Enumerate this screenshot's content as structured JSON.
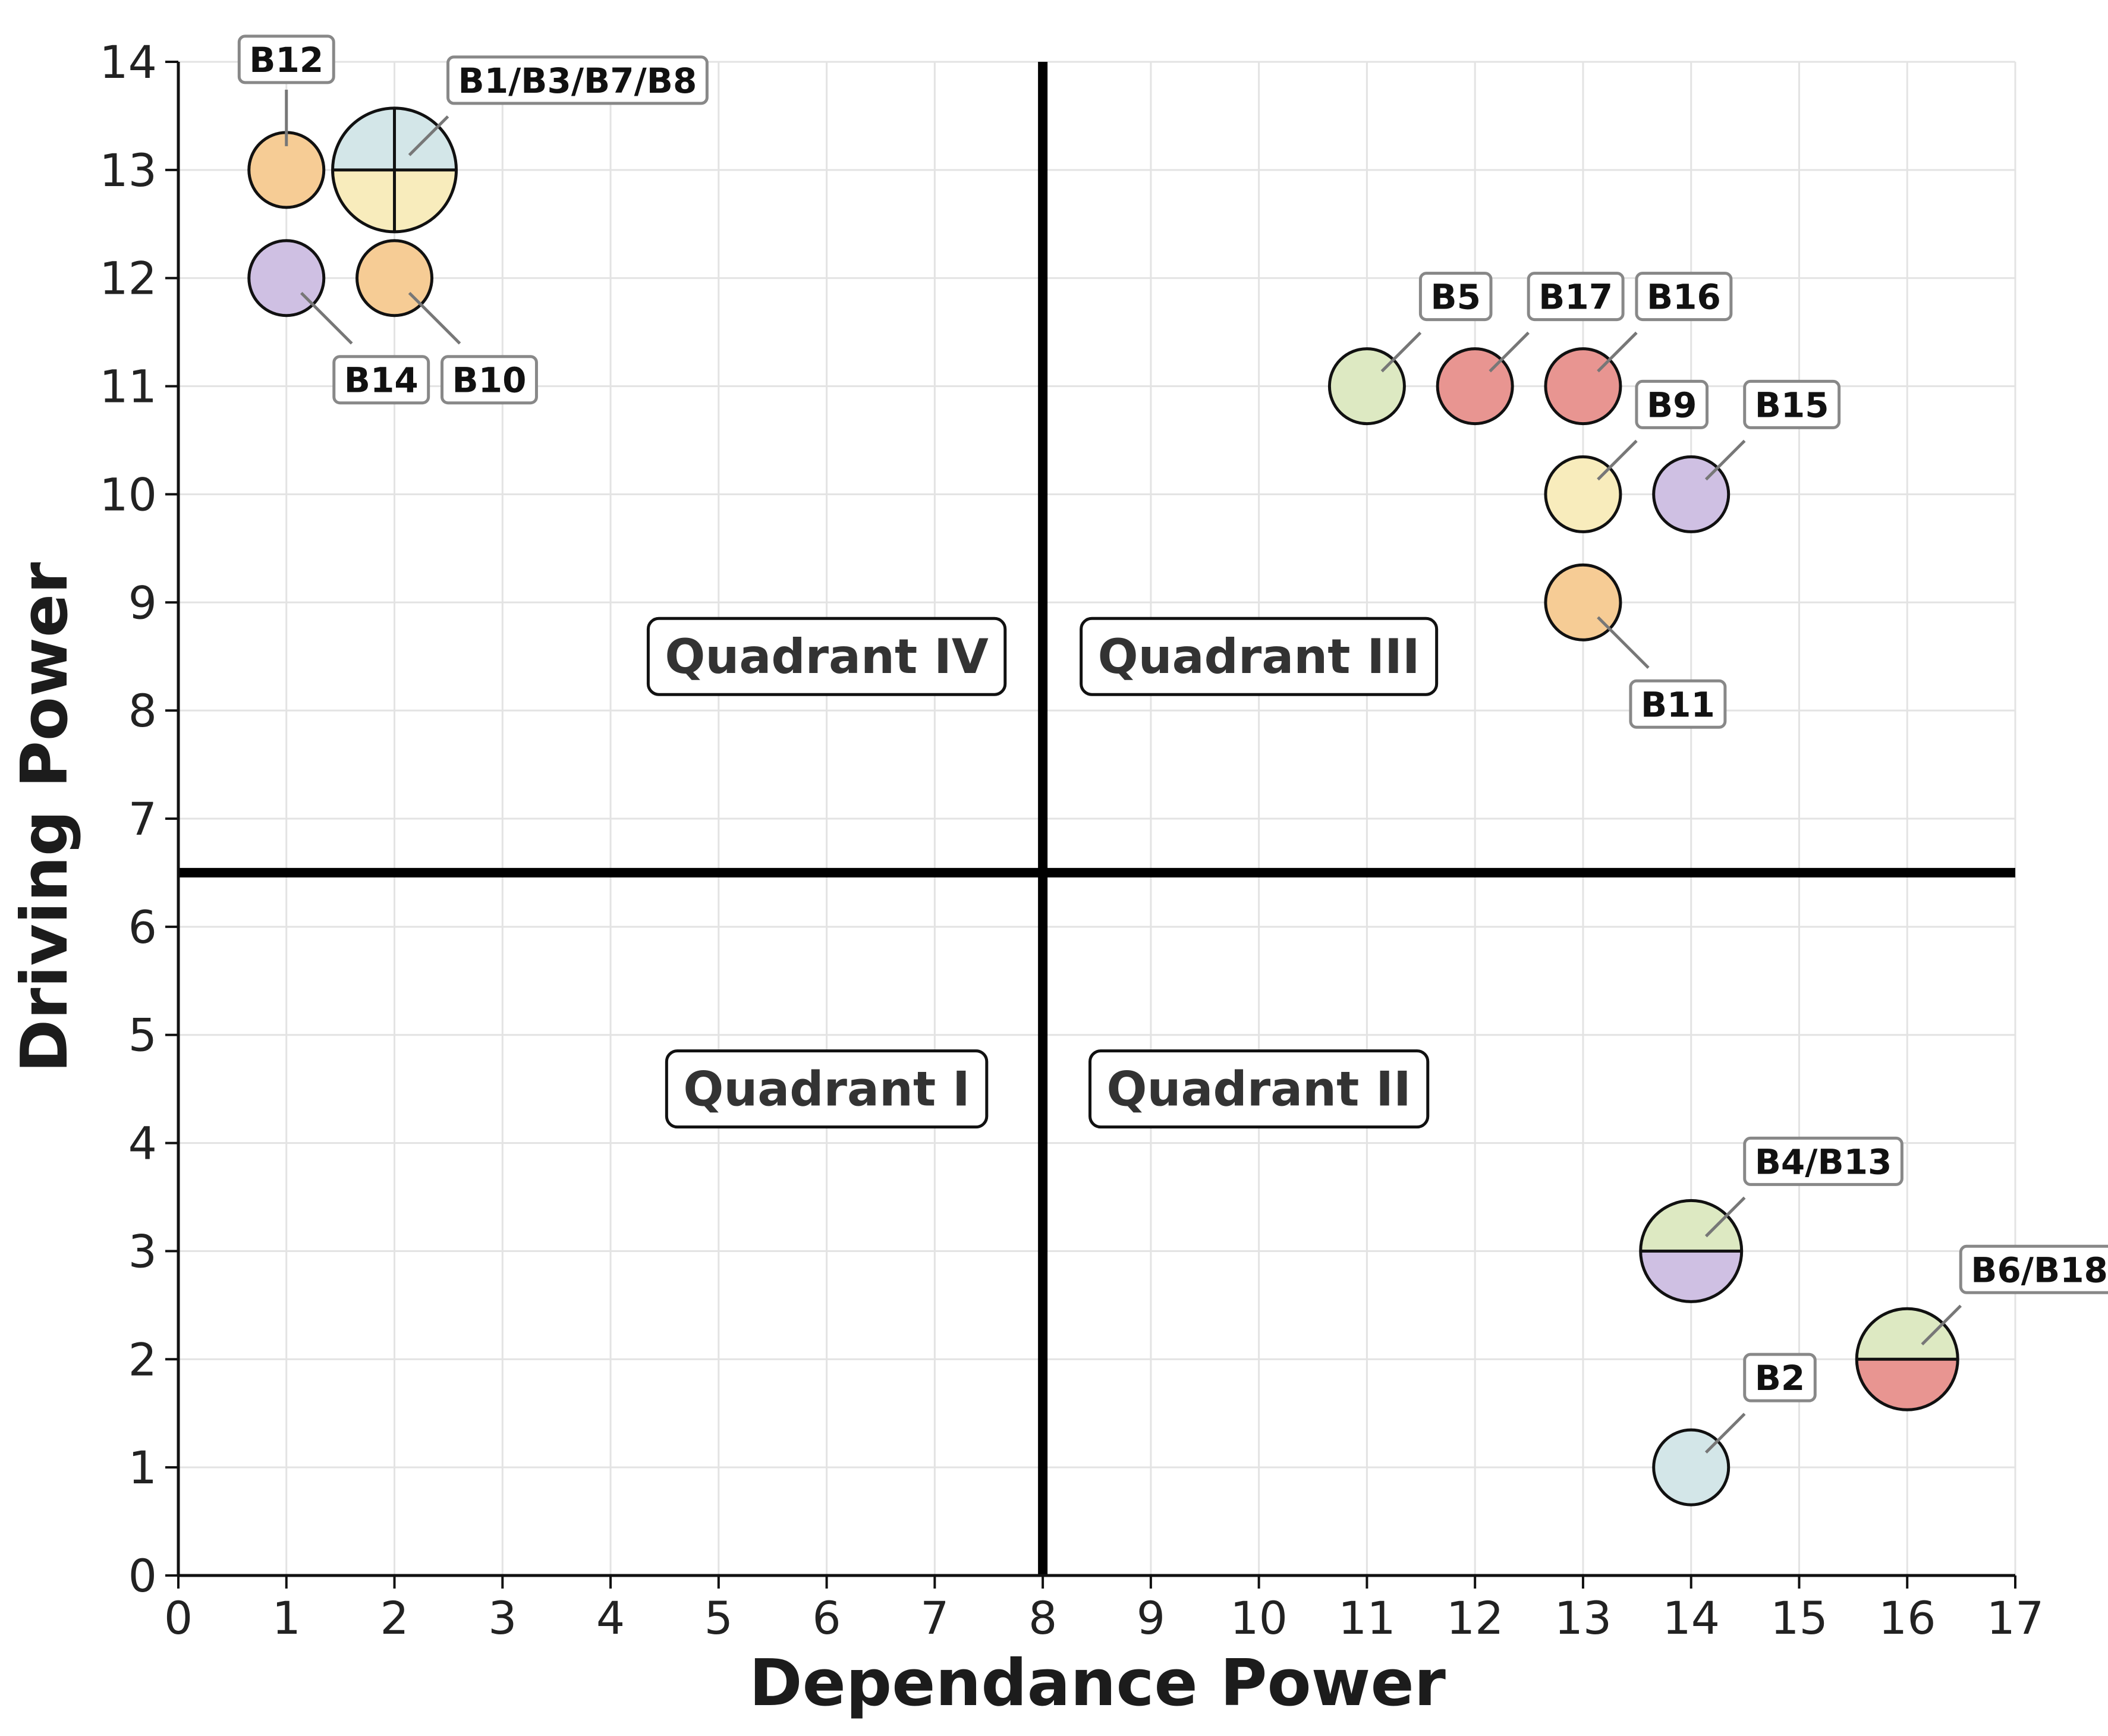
{
  "chart_data": {
    "type": "scatter",
    "title": "",
    "xlabel": "Dependance Power",
    "ylabel": "Driving Power",
    "xlim": [
      0,
      17
    ],
    "ylim": [
      0,
      14
    ],
    "grid": true,
    "x_ticks": [
      "0",
      "1",
      "2",
      "3",
      "4",
      "5",
      "6",
      "7",
      "8",
      "9",
      "10",
      "11",
      "12",
      "13",
      "14",
      "15",
      "16",
      "17"
    ],
    "y_ticks": [
      "0",
      "1",
      "2",
      "3",
      "4",
      "5",
      "6",
      "7",
      "8",
      "9",
      "10",
      "11",
      "12",
      "13",
      "14"
    ],
    "dividers": {
      "x": 8,
      "y": 6.5
    },
    "quadrants": [
      {
        "label": "Quadrant I",
        "x": 6,
        "y": 4.5
      },
      {
        "label": "Quadrant II",
        "x": 10,
        "y": 4.5
      },
      {
        "label": "Quadrant III",
        "x": 10,
        "y": 8.5
      },
      {
        "label": "Quadrant IV",
        "x": 6,
        "y": 8.5
      }
    ],
    "colors": {
      "orange": "#f6cc95",
      "purple": "#cfc0e3",
      "blue": "#d3e6e8",
      "yellow": "#f8ecbc",
      "green": "#dde9c2",
      "red": "#e89591",
      "outline": "#111111",
      "leader": "#777777",
      "grid": "#e3e3e3"
    },
    "points": [
      {
        "label": "B12",
        "x": 1,
        "y": 13,
        "size": "single",
        "split": "none",
        "colors": [
          "orange"
        ],
        "label_dir": "up"
      },
      {
        "label": "B1/B3/B7/B8",
        "x": 2,
        "y": 13,
        "size": "large",
        "split": "quarter",
        "colors": [
          "blue",
          "blue",
          "yellow",
          "yellow"
        ],
        "label_dir": "upright"
      },
      {
        "label": "B14",
        "x": 1,
        "y": 12,
        "size": "single",
        "split": "none",
        "colors": [
          "purple"
        ],
        "label_dir": "downright"
      },
      {
        "label": "B10",
        "x": 2,
        "y": 12,
        "size": "single",
        "split": "none",
        "colors": [
          "orange"
        ],
        "label_dir": "downright"
      },
      {
        "label": "B5",
        "x": 11,
        "y": 11,
        "size": "single",
        "split": "none",
        "colors": [
          "green"
        ],
        "label_dir": "upright"
      },
      {
        "label": "B17",
        "x": 12,
        "y": 11,
        "size": "single",
        "split": "none",
        "colors": [
          "red"
        ],
        "label_dir": "upright"
      },
      {
        "label": "B16",
        "x": 13,
        "y": 11,
        "size": "single",
        "split": "none",
        "colors": [
          "red"
        ],
        "label_dir": "upright"
      },
      {
        "label": "B9",
        "x": 13,
        "y": 10,
        "size": "single",
        "split": "none",
        "colors": [
          "yellow"
        ],
        "label_dir": "upright"
      },
      {
        "label": "B15",
        "x": 14,
        "y": 10,
        "size": "single",
        "split": "none",
        "colors": [
          "purple"
        ],
        "label_dir": "upright"
      },
      {
        "label": "B11",
        "x": 13,
        "y": 9,
        "size": "single",
        "split": "none",
        "colors": [
          "orange"
        ],
        "label_dir": "downright"
      },
      {
        "label": "B4/B13",
        "x": 14,
        "y": 3,
        "size": "medium",
        "split": "half",
        "colors": [
          "green",
          "purple"
        ],
        "label_dir": "upright"
      },
      {
        "label": "B6/B18",
        "x": 16,
        "y": 2,
        "size": "medium",
        "split": "half",
        "colors": [
          "green",
          "red"
        ],
        "label_dir": "upright"
      },
      {
        "label": "B2",
        "x": 14,
        "y": 1,
        "size": "single",
        "split": "none",
        "colors": [
          "blue"
        ],
        "label_dir": "upright"
      }
    ]
  }
}
